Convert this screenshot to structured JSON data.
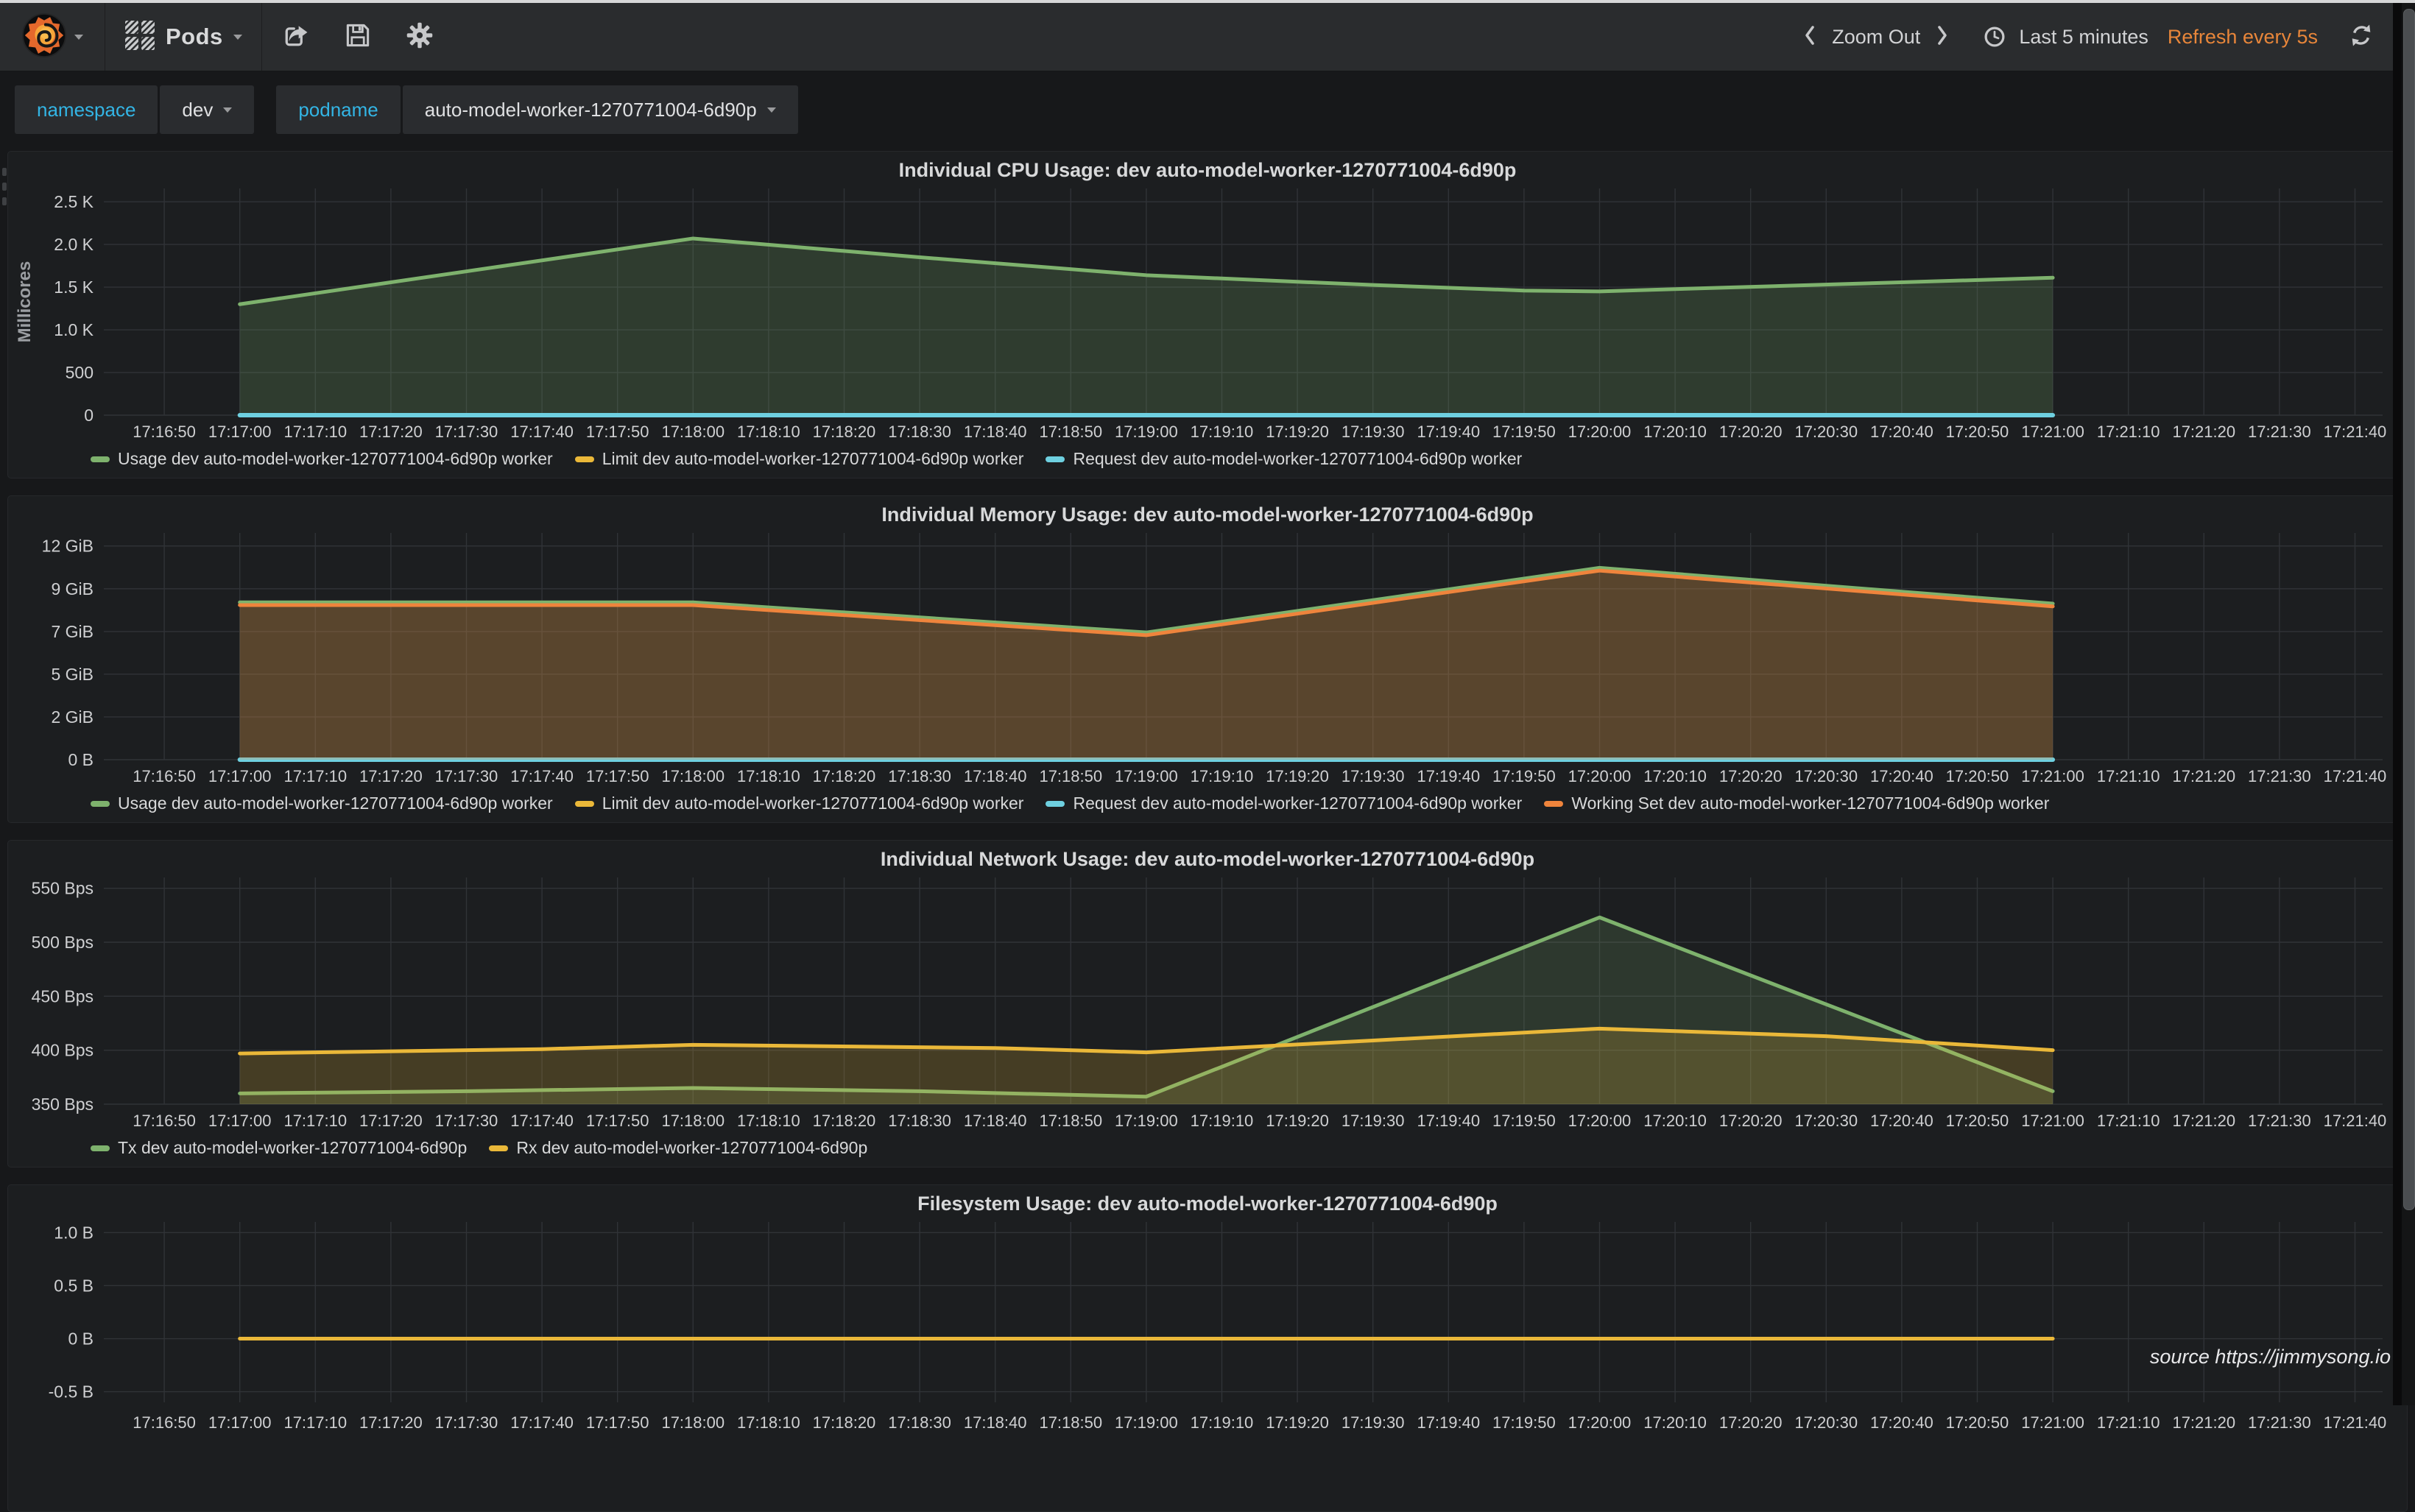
{
  "navbar": {
    "logo_icon": "grafana-logo",
    "dashboard_name": "Pods",
    "actions": [
      {
        "icon": "share-icon"
      },
      {
        "icon": "save-icon"
      },
      {
        "icon": "settings-gear-icon"
      }
    ],
    "time_controls": {
      "shift_left_icon": "chevron-left-icon",
      "zoom_out_label": "Zoom Out",
      "shift_right_icon": "chevron-right-icon",
      "clock_icon": "clock-icon",
      "time_range_label": "Last 5 minutes",
      "refresh_interval_label": "Refresh every 5s",
      "refresh_icon": "refresh-icon"
    }
  },
  "variables": [
    {
      "label": "namespace",
      "value": "dev"
    },
    {
      "label": "podname",
      "value": "auto-model-worker-1270771004-6d90p"
    }
  ],
  "colors": {
    "accent_orange": "#e8863a",
    "variable_label_cyan": "#33b5e5",
    "series_green": "#7EB26D",
    "series_yellow": "#EAB839",
    "series_blue": "#6ED0E0",
    "series_orange": "#EF843C",
    "panel_bg": "#1c1e20",
    "page_bg": "#17181a",
    "navbar_bg": "#2a2c2e"
  },
  "footer": {
    "source": "source https://jimmysong.io"
  },
  "chart_data": [
    {
      "type": "area",
      "title": "Individual CPU Usage: dev auto-model-worker-1270771004-6d90p",
      "ylabel": "Millicores",
      "ylim": [
        0,
        2656
      ],
      "grid": true,
      "legend_position": "bottom",
      "yticks": [
        {
          "v": 0,
          "label": "0"
        },
        {
          "v": 500,
          "label": "500"
        },
        {
          "v": 1000,
          "label": "1.0 K"
        },
        {
          "v": 1500,
          "label": "1.5 K"
        },
        {
          "v": 2000,
          "label": "2.0 K"
        },
        {
          "v": 2500,
          "label": "2.5 K"
        }
      ],
      "xticks": [
        "17:16:50",
        "17:17:00",
        "17:17:10",
        "17:17:20",
        "17:17:30",
        "17:17:40",
        "17:17:50",
        "17:18:00",
        "17:18:10",
        "17:18:20",
        "17:18:30",
        "17:18:40",
        "17:18:50",
        "17:19:00",
        "17:19:10",
        "17:19:20",
        "17:19:30",
        "17:19:40",
        "17:19:50",
        "17:20:00",
        "17:20:10",
        "17:20:20",
        "17:20:30",
        "17:20:40",
        "17:20:50",
        "17:21:00",
        "17:21:10",
        "17:21:20",
        "17:21:30",
        "17:21:40"
      ],
      "show_legend": true,
      "series": [
        {
          "name": "Usage dev auto-model-worker-1270771004-6d90p worker",
          "color": "#7EB26D",
          "fill": 0.2,
          "width": 5,
          "points": [
            [
              "17:17:00",
              1300
            ],
            [
              "17:18:00",
              2070
            ],
            [
              "17:18:30",
              1850
            ],
            [
              "17:19:00",
              1640
            ],
            [
              "17:19:30",
              1525
            ],
            [
              "17:19:50",
              1460
            ],
            [
              "17:20:00",
              1450
            ],
            [
              "17:21:00",
              1610
            ]
          ]
        },
        {
          "name": "Limit dev auto-model-worker-1270771004-6d90p worker",
          "color": "#EAB839",
          "fill": 0,
          "width": 4,
          "points": [
            [
              "17:17:00",
              0
            ],
            [
              "17:21:00",
              0
            ]
          ]
        },
        {
          "name": "Request dev auto-model-worker-1270771004-6d90p worker",
          "color": "#6ED0E0",
          "fill": 0,
          "width": 6,
          "points": [
            [
              "17:17:00",
              0
            ],
            [
              "17:21:00",
              0
            ]
          ]
        }
      ]
    },
    {
      "type": "area",
      "title": "Individual Memory Usage: dev auto-model-worker-1270771004-6d90p",
      "ylabel": "",
      "ylim": [
        0,
        12.35
      ],
      "unit": "GiB",
      "grid": true,
      "legend_position": "bottom",
      "yticks": [
        {
          "v": 0,
          "label": "0 B"
        },
        {
          "v": 2.33,
          "label": "2 GiB"
        },
        {
          "v": 4.66,
          "label": "5 GiB"
        },
        {
          "v": 6.98,
          "label": "7 GiB"
        },
        {
          "v": 9.31,
          "label": "9 GiB"
        },
        {
          "v": 11.64,
          "label": "12 GiB"
        }
      ],
      "xticks": [
        "17:16:50",
        "17:17:00",
        "17:17:10",
        "17:17:20",
        "17:17:30",
        "17:17:40",
        "17:17:50",
        "17:18:00",
        "17:18:10",
        "17:18:20",
        "17:18:30",
        "17:18:40",
        "17:18:50",
        "17:19:00",
        "17:19:10",
        "17:19:20",
        "17:19:30",
        "17:19:40",
        "17:19:50",
        "17:20:00",
        "17:20:10",
        "17:20:20",
        "17:20:30",
        "17:20:40",
        "17:20:50",
        "17:21:00",
        "17:21:10",
        "17:21:20",
        "17:21:30",
        "17:21:40"
      ],
      "show_legend": true,
      "series": [
        {
          "name": "Usage dev auto-model-worker-1270771004-6d90p worker",
          "color": "#7EB26D",
          "fill": 0.12,
          "width": 5,
          "points": [
            [
              "17:17:00",
              8.57
            ],
            [
              "17:18:00",
              8.57
            ],
            [
              "17:19:00",
              6.93
            ],
            [
              "17:20:00",
              10.45
            ],
            [
              "17:21:00",
              8.5
            ]
          ]
        },
        {
          "name": "Limit dev auto-model-worker-1270771004-6d90p worker",
          "color": "#EAB839",
          "fill": 0,
          "width": 4,
          "points": [
            [
              "17:17:00",
              0
            ],
            [
              "17:21:00",
              0
            ]
          ]
        },
        {
          "name": "Request dev auto-model-worker-1270771004-6d90p worker",
          "color": "#6ED0E0",
          "fill": 0,
          "width": 6,
          "points": [
            [
              "17:17:00",
              0
            ],
            [
              "17:21:00",
              0
            ]
          ]
        },
        {
          "name": "Working Set dev auto-model-worker-1270771004-6d90p worker",
          "color": "#EF843C",
          "fill": 0.25,
          "width": 5,
          "points": [
            [
              "17:17:00",
              8.42
            ],
            [
              "17:18:00",
              8.42
            ],
            [
              "17:19:00",
              6.78
            ],
            [
              "17:20:00",
              10.3
            ],
            [
              "17:21:00",
              8.35
            ]
          ]
        }
      ]
    },
    {
      "type": "area",
      "title": "Individual Network Usage: dev auto-model-worker-1270771004-6d90p",
      "ylabel": "",
      "ylim": [
        350,
        560
      ],
      "grid": true,
      "legend_position": "bottom",
      "yticks": [
        {
          "v": 350,
          "label": "350 Bps"
        },
        {
          "v": 400,
          "label": "400 Bps"
        },
        {
          "v": 450,
          "label": "450 Bps"
        },
        {
          "v": 500,
          "label": "500 Bps"
        },
        {
          "v": 550,
          "label": "550 Bps"
        }
      ],
      "xticks": [
        "17:16:50",
        "17:17:00",
        "17:17:10",
        "17:17:20",
        "17:17:30",
        "17:17:40",
        "17:17:50",
        "17:18:00",
        "17:18:10",
        "17:18:20",
        "17:18:30",
        "17:18:40",
        "17:18:50",
        "17:19:00",
        "17:19:10",
        "17:19:20",
        "17:19:30",
        "17:19:40",
        "17:19:50",
        "17:20:00",
        "17:20:10",
        "17:20:20",
        "17:20:30",
        "17:20:40",
        "17:20:50",
        "17:21:00",
        "17:21:10",
        "17:21:20",
        "17:21:30",
        "17:21:40"
      ],
      "show_legend": true,
      "series": [
        {
          "name": "Tx dev auto-model-worker-1270771004-6d90p",
          "color": "#7EB26D",
          "fill": 0.18,
          "width": 5,
          "points": [
            [
              "17:17:00",
              360
            ],
            [
              "17:17:30",
              362
            ],
            [
              "17:18:00",
              365
            ],
            [
              "17:18:30",
              362
            ],
            [
              "17:19:00",
              357
            ],
            [
              "17:20:00",
              523
            ],
            [
              "17:21:00",
              362
            ]
          ]
        },
        {
          "name": "Rx dev auto-model-worker-1270771004-6d90p",
          "color": "#EAB839",
          "fill": 0.2,
          "width": 5,
          "points": [
            [
              "17:17:00",
              397
            ],
            [
              "17:17:40",
              401
            ],
            [
              "17:18:00",
              405
            ],
            [
              "17:18:40",
              402
            ],
            [
              "17:19:00",
              398
            ],
            [
              "17:19:30",
              409
            ],
            [
              "17:20:00",
              420
            ],
            [
              "17:20:30",
              413
            ],
            [
              "17:21:00",
              400
            ]
          ]
        }
      ]
    },
    {
      "type": "line",
      "title": "Filesystem Usage: dev auto-model-worker-1270771004-6d90p",
      "ylabel": "",
      "ylim": [
        -0.6,
        1.1
      ],
      "grid": true,
      "legend_position": "bottom",
      "yticks": [
        {
          "v": -0.5,
          "label": "-0.5 B"
        },
        {
          "v": 0,
          "label": "0 B"
        },
        {
          "v": 0.5,
          "label": "0.5 B"
        },
        {
          "v": 1.0,
          "label": "1.0 B"
        }
      ],
      "xticks": [
        "17:16:50",
        "17:17:00",
        "17:17:10",
        "17:17:20",
        "17:17:30",
        "17:17:40",
        "17:17:50",
        "17:18:00",
        "17:18:10",
        "17:18:20",
        "17:18:30",
        "17:18:40",
        "17:18:50",
        "17:19:00",
        "17:19:10",
        "17:19:20",
        "17:19:30",
        "17:19:40",
        "17:19:50",
        "17:20:00",
        "17:20:10",
        "17:20:20",
        "17:20:30",
        "17:20:40",
        "17:20:50",
        "17:21:00",
        "17:21:10",
        "17:21:20",
        "17:21:30",
        "17:21:40"
      ],
      "show_legend": false,
      "series": [
        {
          "name": "",
          "color": "#EAB839",
          "fill": 0,
          "width": 5,
          "points": [
            [
              "17:17:00",
              0
            ],
            [
              "17:21:00",
              0
            ]
          ]
        }
      ]
    }
  ]
}
